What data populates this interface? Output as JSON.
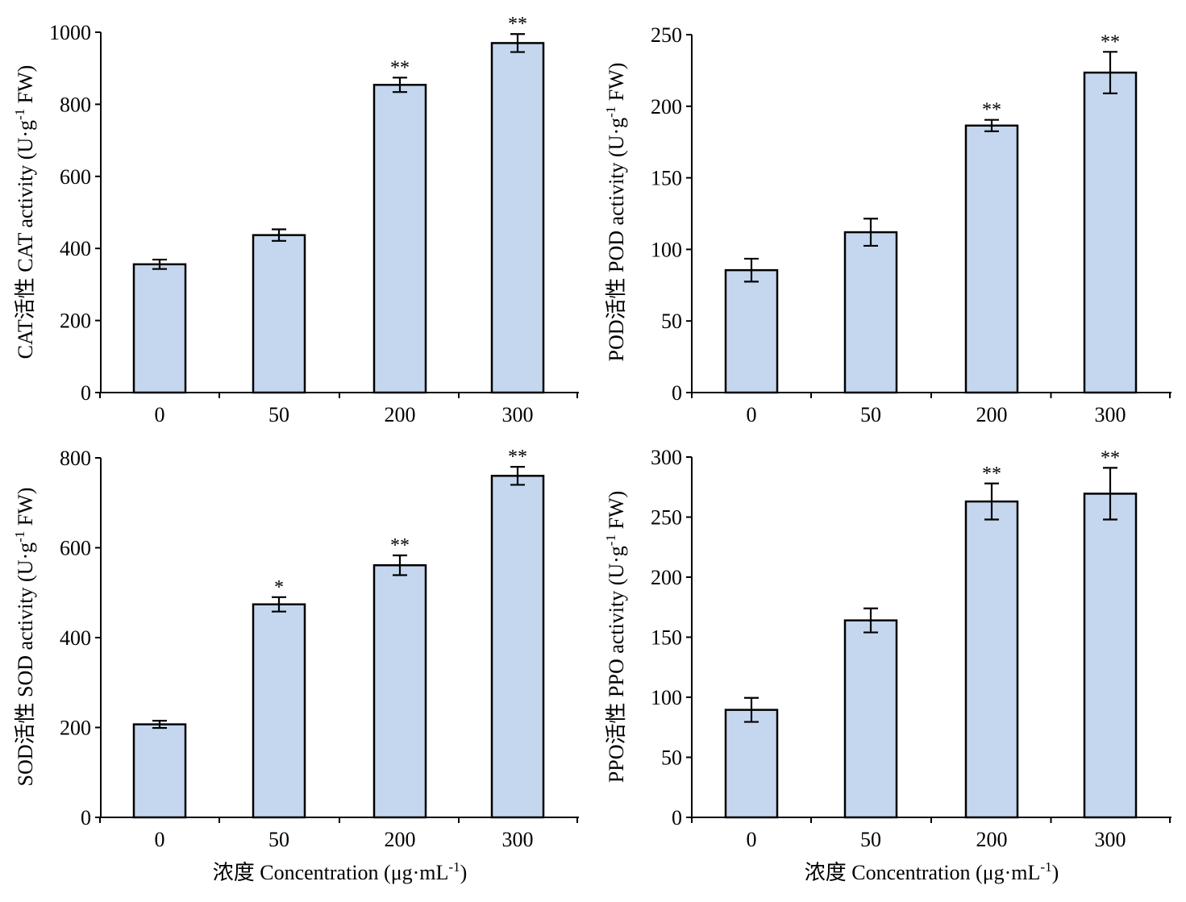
{
  "chart_data": [
    {
      "type": "bar",
      "categories": [
        "0",
        "50",
        "200",
        "300"
      ],
      "values": [
        356,
        437,
        854,
        970
      ],
      "errors": [
        13,
        16,
        20,
        25
      ],
      "significance": [
        "",
        "",
        "**",
        "**"
      ],
      "ylabel": "CAT活性 CAT activity (U·g",
      "ylabel_sup": "-1",
      "ylabel_end": " FW)",
      "ylim": [
        0,
        1000
      ],
      "yticks": [
        0,
        200,
        400,
        600,
        800,
        1000
      ],
      "xlabel": "",
      "xlabel_sup": "",
      "xlabel_end": "",
      "bar_color": "#c5d7ef"
    },
    {
      "type": "bar",
      "categories": [
        "0",
        "50",
        "200",
        "300"
      ],
      "values": [
        85.5,
        112,
        186.5,
        223.5
      ],
      "errors": [
        8,
        9.5,
        4,
        14.5
      ],
      "significance": [
        "",
        "",
        "**",
        "**"
      ],
      "ylabel": "POD活性 POD activity (U·g",
      "ylabel_sup": "-1",
      "ylabel_end": " FW)",
      "ylim": [
        0,
        250
      ],
      "yticks": [
        0,
        50,
        100,
        150,
        200,
        250
      ],
      "xlabel": "",
      "xlabel_sup": "",
      "xlabel_end": "",
      "bar_color": "#c5d7ef"
    },
    {
      "type": "bar",
      "categories": [
        "0",
        "50",
        "200",
        "300"
      ],
      "values": [
        207,
        474,
        561,
        760
      ],
      "errors": [
        8,
        16,
        22,
        20
      ],
      "significance": [
        "",
        "*",
        "**",
        "**"
      ],
      "ylabel": "SOD活性 SOD activity (U·g",
      "ylabel_sup": "-1",
      "ylabel_end": " FW)",
      "ylim": [
        0,
        800
      ],
      "yticks": [
        0,
        200,
        400,
        600,
        800
      ],
      "xlabel": "浓度 Concentration (μg·mL",
      "xlabel_sup": "-1",
      "xlabel_end": ")",
      "bar_color": "#c5d7ef"
    },
    {
      "type": "bar",
      "categories": [
        "0",
        "50",
        "200",
        "300"
      ],
      "values": [
        89.5,
        164,
        263,
        269.5
      ],
      "errors": [
        10,
        10,
        15,
        21.5
      ],
      "significance": [
        "",
        "",
        "**",
        "**"
      ],
      "ylabel": "PPO活性 PPO activity (U·g",
      "ylabel_sup": "-1",
      "ylabel_end": " FW)",
      "ylim": [
        0,
        300
      ],
      "yticks": [
        0,
        50,
        100,
        150,
        200,
        250,
        300
      ],
      "xlabel": "浓度 Concentration (μg·mL",
      "xlabel_sup": "-1",
      "xlabel_end": ")",
      "bar_color": "#c5d7ef"
    }
  ]
}
